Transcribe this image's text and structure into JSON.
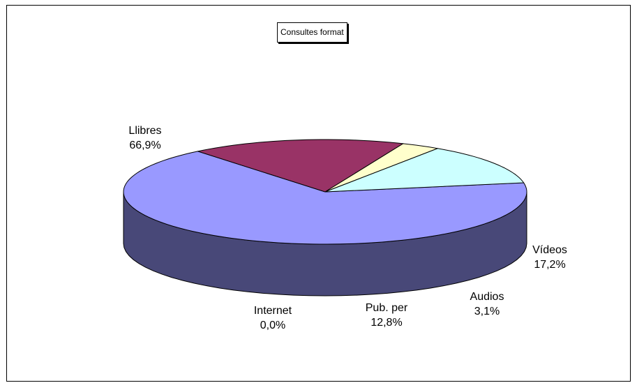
{
  "chart_data": {
    "type": "pie",
    "title": "Consultes format",
    "slices": [
      {
        "name": "Llibres",
        "value": 66.9,
        "pct_label": "66,9%",
        "color": "#9999ff"
      },
      {
        "name": "Vídeos",
        "value": 17.2,
        "pct_label": "17,2%",
        "color": "#993366"
      },
      {
        "name": "Audios",
        "value": 3.1,
        "pct_label": "3,1%",
        "color": "#ffffcc"
      },
      {
        "name": "Pub. per",
        "value": 12.8,
        "pct_label": "12,8%",
        "color": "#ccffff"
      },
      {
        "name": "Internet",
        "value": 0.0,
        "pct_label": "0,0%",
        "color": "#660066"
      }
    ],
    "legend": "none",
    "style": "3d-pie"
  }
}
